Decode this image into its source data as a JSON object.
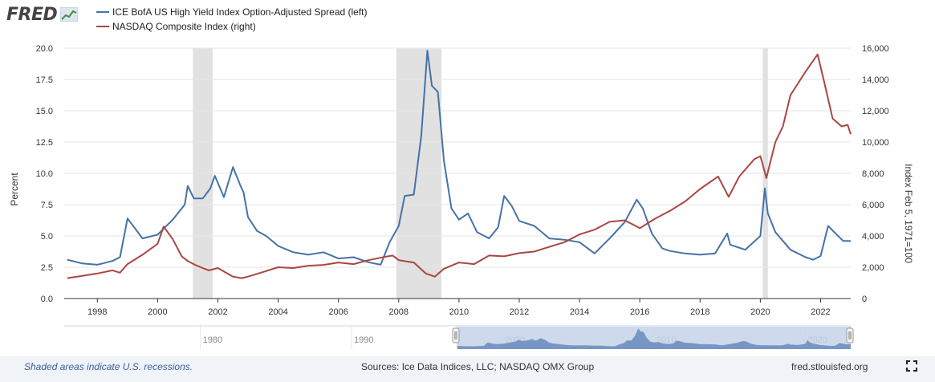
{
  "header": {
    "logo_text": "FRED",
    "logo_icon": "fred-chart-icon"
  },
  "footer": {
    "recession_note": "Shaded areas indicate U.S. recessions.",
    "sources": "Sources: Ice Data Indices, LLC; NASDAQ OMX Group",
    "site": "fred.stlouisfed.org",
    "fullscreen_icon": "fullscreen-icon"
  },
  "navigator": {
    "labels": [
      "1980",
      "1990",
      "2000",
      "2010",
      "2020"
    ]
  },
  "chart_data": {
    "type": "line",
    "title": "",
    "xlim": [
      1996.9,
      2023.0
    ],
    "x_ticks": [
      "1998",
      "2000",
      "2002",
      "2004",
      "2006",
      "2008",
      "2010",
      "2012",
      "2014",
      "2016",
      "2018",
      "2020",
      "2022"
    ],
    "grid": true,
    "legend_position": "top-left",
    "recessions": [
      [
        2001.17,
        2001.83
      ],
      [
        2007.92,
        2009.42
      ],
      [
        2020.08,
        2020.25
      ]
    ],
    "left_axis": {
      "label": "Percent",
      "ylim": [
        0,
        20
      ],
      "ticks": [
        "0.0",
        "2.5",
        "5.0",
        "7.5",
        "10.0",
        "12.5",
        "15.0",
        "17.5",
        "20.0"
      ]
    },
    "right_axis": {
      "label": "Index Feb 5, 1971=100",
      "ylim": [
        0,
        16000
      ],
      "ticks": [
        "0",
        "2,000",
        "4,000",
        "6,000",
        "8,000",
        "10,000",
        "12,000",
        "14,000",
        "16,000"
      ]
    },
    "series": [
      {
        "name": "ICE BofA US High Yield Index Option-Adjusted Spread (left)",
        "axis": "left",
        "color": "#4572a7",
        "x": [
          1997.0,
          1997.5,
          1998.0,
          1998.5,
          1998.75,
          1999.0,
          1999.5,
          2000.0,
          2000.5,
          2000.9,
          2001.0,
          2001.2,
          2001.5,
          2001.75,
          2001.9,
          2002.2,
          2002.5,
          2002.75,
          2002.85,
          2003.0,
          2003.3,
          2003.6,
          2004.0,
          2004.5,
          2005.0,
          2005.5,
          2006.0,
          2006.5,
          2007.0,
          2007.4,
          2007.7,
          2008.0,
          2008.2,
          2008.5,
          2008.75,
          2008.95,
          2009.1,
          2009.3,
          2009.5,
          2009.75,
          2010.0,
          2010.3,
          2010.6,
          2011.0,
          2011.3,
          2011.5,
          2011.75,
          2012.0,
          2012.5,
          2013.0,
          2013.5,
          2014.0,
          2014.5,
          2015.0,
          2015.5,
          2015.9,
          2016.1,
          2016.4,
          2016.75,
          2017.0,
          2017.5,
          2018.0,
          2018.5,
          2018.9,
          2019.0,
          2019.5,
          2020.0,
          2020.15,
          2020.25,
          2020.5,
          2020.75,
          2021.0,
          2021.5,
          2021.75,
          2022.0,
          2022.25,
          2022.5,
          2022.75,
          2023.0
        ],
        "values": [
          3.1,
          2.8,
          2.7,
          3.0,
          3.3,
          6.4,
          4.8,
          5.1,
          6.3,
          7.5,
          9.0,
          8.0,
          8.0,
          8.8,
          9.8,
          8.1,
          10.5,
          9.0,
          8.5,
          6.5,
          5.4,
          5.0,
          4.2,
          3.7,
          3.5,
          3.7,
          3.2,
          3.3,
          2.9,
          2.7,
          4.5,
          5.8,
          8.2,
          8.3,
          13.0,
          19.8,
          17.0,
          16.5,
          11.0,
          7.2,
          6.3,
          6.8,
          5.3,
          4.8,
          5.7,
          8.2,
          7.4,
          6.2,
          5.8,
          4.8,
          4.7,
          4.5,
          3.6,
          4.8,
          6.1,
          7.9,
          7.2,
          5.2,
          4.0,
          3.8,
          3.6,
          3.5,
          3.6,
          5.2,
          4.3,
          3.9,
          5.0,
          8.8,
          6.8,
          5.3,
          4.6,
          3.9,
          3.3,
          3.1,
          3.4,
          5.8,
          5.2,
          4.6,
          4.6
        ]
      },
      {
        "name": "NASDAQ Composite Index (right)",
        "axis": "right",
        "color": "#aa4643",
        "x": [
          1997.0,
          1997.5,
          1998.0,
          1998.5,
          1998.75,
          1999.0,
          1999.5,
          2000.0,
          2000.2,
          2000.5,
          2000.8,
          2001.0,
          2001.3,
          2001.7,
          2002.0,
          2002.5,
          2002.8,
          2003.0,
          2003.5,
          2004.0,
          2004.5,
          2005.0,
          2005.5,
          2006.0,
          2006.5,
          2007.0,
          2007.5,
          2007.8,
          2008.0,
          2008.5,
          2008.9,
          2009.2,
          2009.5,
          2010.0,
          2010.5,
          2011.0,
          2011.5,
          2012.0,
          2012.5,
          2013.0,
          2013.5,
          2014.0,
          2014.5,
          2015.0,
          2015.5,
          2016.0,
          2016.5,
          2017.0,
          2017.5,
          2018.0,
          2018.6,
          2018.95,
          2019.3,
          2019.8,
          2020.0,
          2020.2,
          2020.5,
          2020.75,
          2021.0,
          2021.5,
          2021.9,
          2022.1,
          2022.4,
          2022.7,
          2022.9,
          2023.0
        ],
        "values": [
          1300,
          1450,
          1600,
          1800,
          1650,
          2200,
          2800,
          3500,
          4600,
          3800,
          2700,
          2400,
          2100,
          1800,
          1950,
          1400,
          1300,
          1400,
          1700,
          2000,
          1950,
          2100,
          2150,
          2300,
          2200,
          2450,
          2650,
          2750,
          2450,
          2300,
          1600,
          1400,
          1900,
          2300,
          2200,
          2750,
          2700,
          2900,
          3000,
          3300,
          3600,
          4100,
          4400,
          4900,
          5000,
          4500,
          5100,
          5600,
          6200,
          7000,
          7800,
          6500,
          7800,
          8900,
          9100,
          7700,
          10000,
          11000,
          13000,
          14500,
          15600,
          14000,
          11500,
          11000,
          11100,
          10500
        ]
      }
    ]
  }
}
